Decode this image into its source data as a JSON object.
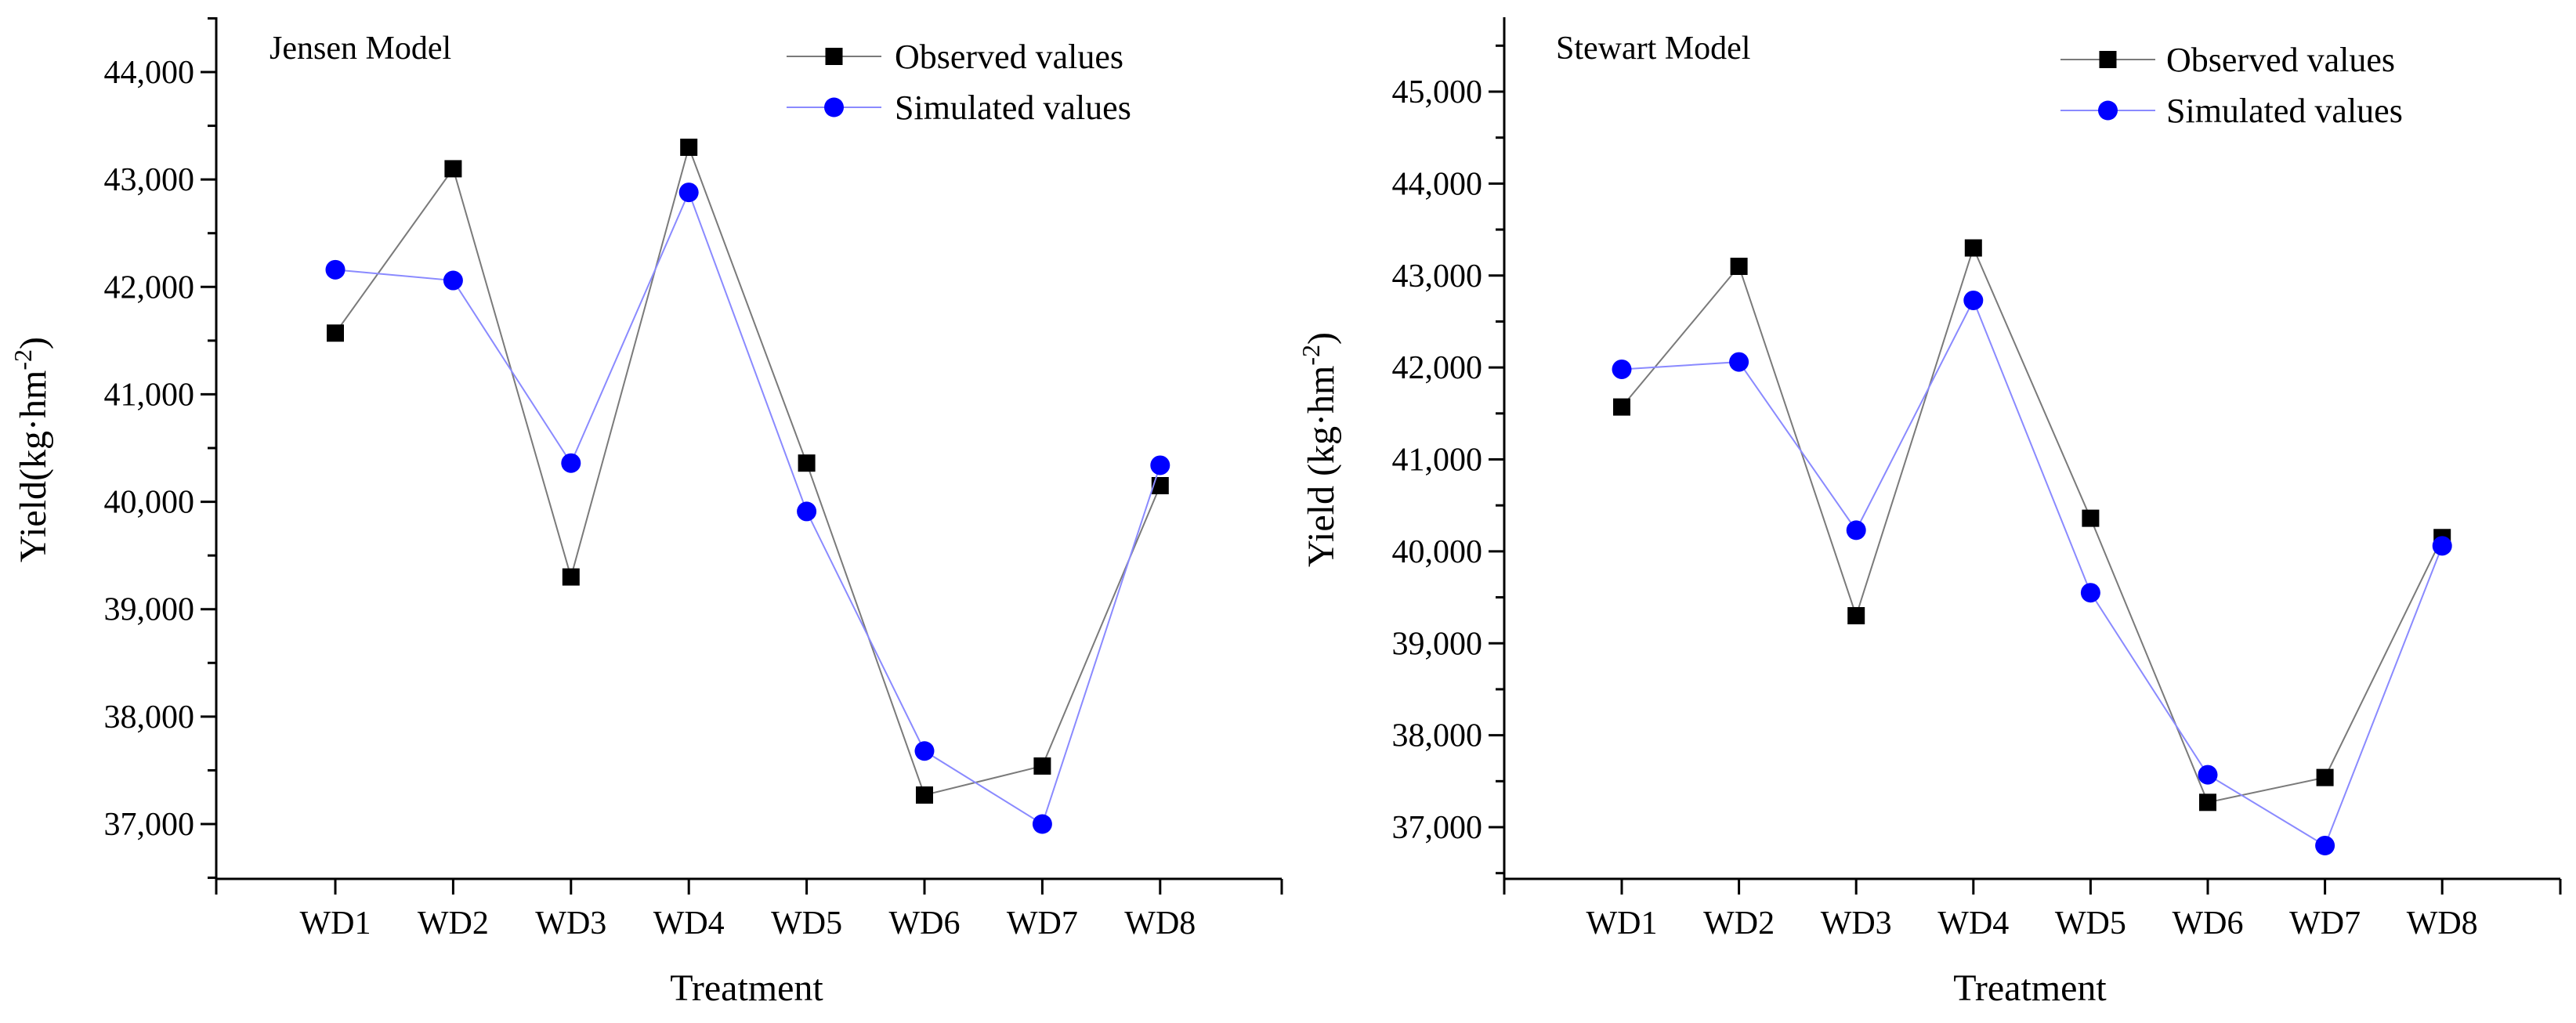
{
  "colors": {
    "observed": "#000000",
    "simulated": "#0000ff",
    "observed_line": "#7a7a7a",
    "simulated_line": "#8a8aff"
  },
  "chart_data": [
    {
      "type": "line",
      "title": "Jensen Model",
      "xlabel": "Treatment",
      "ylabel_main": "Yield(kg·hm",
      "ylabel_sup": "-2",
      "ylabel_close": ")",
      "categories": [
        "WD1",
        "WD2",
        "WD3",
        "WD4",
        "WD5",
        "WD6",
        "WD7",
        "WD8"
      ],
      "ylim": [
        36500,
        44500
      ],
      "yticks": [
        37000,
        38000,
        39000,
        40000,
        41000,
        42000,
        43000,
        44000
      ],
      "ytick_labels": [
        "37,000",
        "38,000",
        "39,000",
        "40,000",
        "41,000",
        "42,000",
        "43,000",
        "44,000"
      ],
      "legend_position": "top-right",
      "series": [
        {
          "name": "Observed values",
          "marker": "square",
          "values": [
            41570,
            43100,
            39300,
            43300,
            40360,
            37270,
            37540,
            40150
          ]
        },
        {
          "name": "Simulated values",
          "marker": "circle",
          "values": [
            42160,
            42060,
            40360,
            42880,
            39910,
            37680,
            37000,
            40340
          ]
        }
      ]
    },
    {
      "type": "line",
      "title": "Stewart Model",
      "xlabel": "Treatment",
      "ylabel_main": "Yield (kg·hm",
      "ylabel_sup": "-2",
      "ylabel_close": ")",
      "categories": [
        "WD1",
        "WD2",
        "WD3",
        "WD4",
        "WD5",
        "WD6",
        "WD7",
        "WD8"
      ],
      "ylim": [
        36450,
        45800
      ],
      "yticks": [
        37000,
        38000,
        39000,
        40000,
        41000,
        42000,
        43000,
        44000,
        45000
      ],
      "ytick_labels": [
        "37,000",
        "38,000",
        "39,000",
        "40,000",
        "41,000",
        "42,000",
        "43,000",
        "44,000",
        "45,000"
      ],
      "legend_position": "top-right",
      "series": [
        {
          "name": "Observed values",
          "marker": "square",
          "values": [
            41570,
            43100,
            39300,
            43300,
            40360,
            37270,
            37540,
            40150
          ]
        },
        {
          "name": "Simulated values",
          "marker": "circle",
          "values": [
            41980,
            42060,
            40230,
            42730,
            39550,
            37570,
            36800,
            40060
          ]
        }
      ]
    }
  ]
}
